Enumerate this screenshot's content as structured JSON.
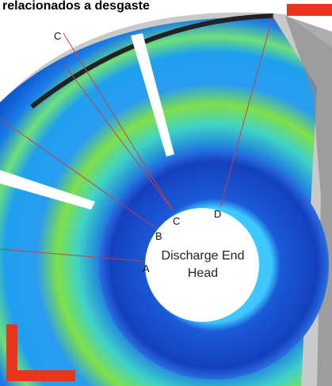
{
  "header": {
    "title": "relacionados a desgaste"
  },
  "labels": [
    "C",
    "C",
    "D",
    "B",
    "A"
  ],
  "center_label": {
    "line1": "Discharge End",
    "line2": "Head"
  }
}
